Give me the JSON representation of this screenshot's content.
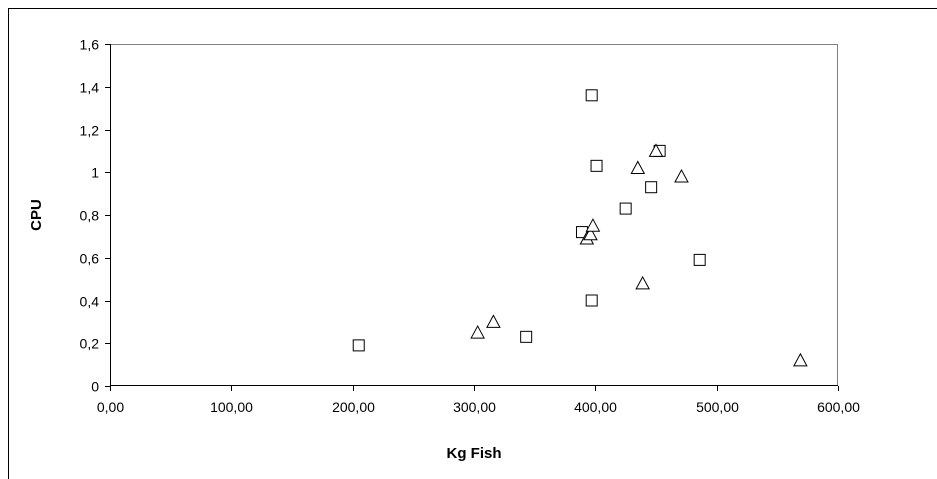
{
  "chart_data": {
    "type": "scatter",
    "title": "",
    "xlabel": "Kg Fish",
    "ylabel": "CPU",
    "xlim": [
      0,
      600
    ],
    "ylim": [
      0,
      1.6
    ],
    "x_ticks": [
      0,
      100,
      200,
      300,
      400,
      500,
      600
    ],
    "y_ticks": [
      0,
      0.2,
      0.4,
      0.6,
      0.8,
      1.0,
      1.2,
      1.4,
      1.6
    ],
    "x_tick_labels": [
      "0,00",
      "100,00",
      "200,00",
      "300,00",
      "400,00",
      "500,00",
      "600,00"
    ],
    "y_tick_labels": [
      "0",
      "0,2",
      "0,4",
      "0,6",
      "0,8",
      "1",
      "1,2",
      "1,4",
      "1,6"
    ],
    "grid": false,
    "legend": "none",
    "series": [
      {
        "marker": "square",
        "points": [
          {
            "x": 205,
            "y": 0.19
          },
          {
            "x": 343,
            "y": 0.23
          },
          {
            "x": 389,
            "y": 0.72
          },
          {
            "x": 397,
            "y": 0.4
          },
          {
            "x": 397,
            "y": 1.36
          },
          {
            "x": 401,
            "y": 1.03
          },
          {
            "x": 425,
            "y": 0.83
          },
          {
            "x": 446,
            "y": 0.93
          },
          {
            "x": 453,
            "y": 1.1
          },
          {
            "x": 486,
            "y": 0.59
          }
        ]
      },
      {
        "marker": "triangle",
        "points": [
          {
            "x": 303,
            "y": 0.25
          },
          {
            "x": 316,
            "y": 0.3
          },
          {
            "x": 393,
            "y": 0.69
          },
          {
            "x": 396,
            "y": 0.71
          },
          {
            "x": 398,
            "y": 0.75
          },
          {
            "x": 435,
            "y": 1.02
          },
          {
            "x": 439,
            "y": 0.48
          },
          {
            "x": 450,
            "y": 1.1
          },
          {
            "x": 471,
            "y": 0.98
          },
          {
            "x": 569,
            "y": 0.12
          }
        ]
      }
    ]
  }
}
